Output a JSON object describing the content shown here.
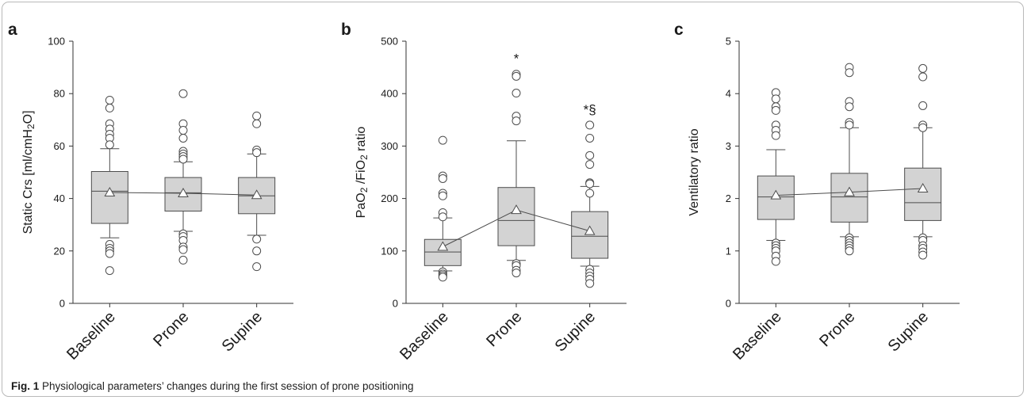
{
  "caption": {
    "label": "Fig. 1",
    "text": "Physiological parameters’ changes during the first session of prone positioning"
  },
  "colors": {
    "box_fill": "#d3d3d3",
    "stroke": "#4d4d4d",
    "axis": "#333333"
  },
  "chart_data": [
    {
      "type": "box",
      "panel_label": "a",
      "categories": [
        "Baseline",
        "Prone",
        "Supine"
      ],
      "ylabel": "Static Crs [ml/cmH2O]",
      "ylim": [
        0,
        100
      ],
      "yticks": [
        0,
        20,
        40,
        60,
        80,
        100
      ],
      "boxes": [
        {
          "q1": 30.5,
          "median": 42.8,
          "q3": 50.3,
          "whisker_low": 25,
          "whisker_high": 59,
          "mean": 42.3
        },
        {
          "q1": 35.2,
          "median": 42.2,
          "q3": 48.0,
          "whisker_low": 27.5,
          "whisker_high": 54,
          "mean": 42.0
        },
        {
          "q1": 34.2,
          "median": 41.0,
          "q3": 48.0,
          "whisker_low": 26,
          "whisker_high": 57,
          "mean": 41.3
        }
      ],
      "outliers": [
        [
          77.5,
          74.5,
          68.5,
          66.5,
          64.5,
          63,
          60.5,
          22.5,
          21,
          20,
          19,
          12.5
        ],
        [
          80,
          68.5,
          66,
          63,
          58,
          57,
          56,
          55,
          26.5,
          25.5,
          24,
          21.5,
          20.5,
          16.5
        ],
        [
          71.5,
          68.5,
          58.5,
          57.5,
          24.5,
          20,
          14
        ]
      ],
      "annotations": [
        "",
        "",
        ""
      ]
    },
    {
      "type": "box",
      "panel_label": "b",
      "categories": [
        "Baseline",
        "Prone",
        "Supine"
      ],
      "ylabel": "PaO2 /FiO2 ratio",
      "ylim": [
        0,
        500
      ],
      "yticks": [
        0,
        100,
        200,
        300,
        400,
        500
      ],
      "boxes": [
        {
          "q1": 72,
          "median": 98,
          "q3": 122,
          "whisker_low": 62,
          "whisker_high": 163,
          "mean": 108
        },
        {
          "q1": 110,
          "median": 158,
          "q3": 221,
          "whisker_low": 82,
          "whisker_high": 310,
          "mean": 178
        },
        {
          "q1": 86,
          "median": 128,
          "q3": 175,
          "whisker_low": 71,
          "whisker_high": 223,
          "mean": 138
        }
      ],
      "outliers": [
        [
          311,
          243,
          238,
          210,
          205,
          173,
          165,
          60,
          56,
          53,
          50
        ],
        [
          437,
          433,
          401,
          357,
          348,
          76,
          72,
          63,
          58
        ],
        [
          340,
          315,
          282,
          265,
          230,
          228,
          210,
          65,
          58,
          52,
          46,
          38
        ]
      ],
      "annotations": [
        "",
        "*",
        "*§"
      ]
    },
    {
      "type": "box",
      "panel_label": "c",
      "categories": [
        "Baseline",
        "Prone",
        "Supine"
      ],
      "ylabel": "Ventilatory ratio",
      "ylim": [
        0,
        5
      ],
      "yticks": [
        0,
        1,
        2,
        3,
        4,
        5
      ],
      "boxes": [
        {
          "q1": 1.6,
          "median": 2.03,
          "q3": 2.43,
          "whisker_low": 1.2,
          "whisker_high": 2.93,
          "mean": 2.06
        },
        {
          "q1": 1.55,
          "median": 2.03,
          "q3": 2.48,
          "whisker_low": 1.27,
          "whisker_high": 3.35,
          "mean": 2.12
        },
        {
          "q1": 1.58,
          "median": 1.92,
          "q3": 2.58,
          "whisker_low": 1.27,
          "whisker_high": 3.35,
          "mean": 2.19
        }
      ],
      "outliers": [
        [
          4.02,
          3.9,
          3.75,
          3.68,
          3.4,
          3.3,
          3.2,
          1.15,
          1.1,
          1.05,
          1.0,
          0.9,
          0.8
        ],
        [
          4.5,
          4.4,
          3.85,
          3.75,
          3.45,
          3.4,
          1.25,
          1.2,
          1.15,
          1.1,
          1.05,
          1.0
        ],
        [
          4.48,
          4.32,
          3.77,
          3.4,
          3.35,
          1.25,
          1.2,
          1.1,
          1.05,
          0.98,
          0.92
        ]
      ],
      "annotations": [
        "",
        "",
        ""
      ]
    }
  ]
}
